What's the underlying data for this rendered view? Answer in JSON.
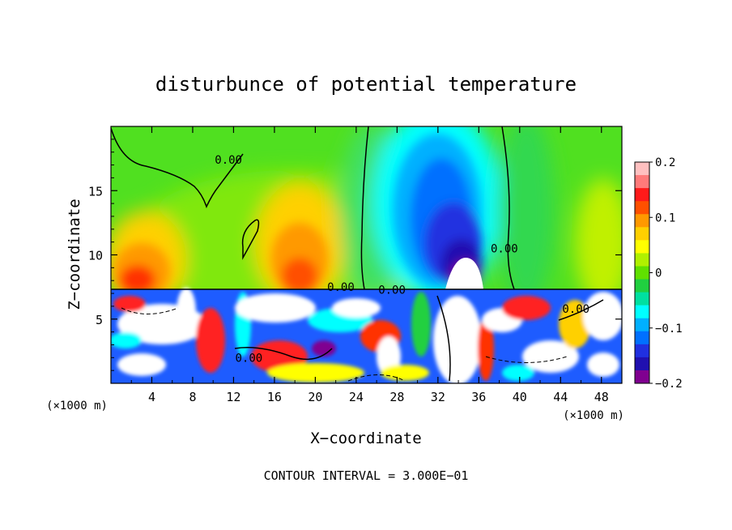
{
  "chart_data": {
    "type": "heatmap",
    "title": "disturbunce of potential temperature",
    "xlabel": "X−coordinate",
    "ylabel": "Z−coordinate",
    "x_unit_left": "(×1000 m)",
    "x_unit_right": "(×1000 m)",
    "footer": "CONTOUR INTERVAL = 3.000E−01",
    "xlim": [
      0,
      50
    ],
    "ylim": [
      0,
      20
    ],
    "x_ticks": [
      4,
      8,
      12,
      16,
      20,
      24,
      28,
      32,
      36,
      40,
      44,
      48
    ],
    "x_tick_labels": [
      "4",
      "8",
      "12",
      "16",
      "20",
      "24",
      "28",
      "32",
      "36",
      "40",
      "44",
      "48"
    ],
    "y_ticks": [
      5,
      10,
      15
    ],
    "y_tick_labels": [
      "5",
      "10",
      "15"
    ],
    "colorbar": {
      "range": [
        -0.2,
        0.2
      ],
      "tick_values": [
        0.2,
        0.1,
        0,
        -0.1,
        -0.2
      ],
      "tick_labels": [
        "0.2",
        "0.1",
        "0",
        "−0.1",
        "−0.2"
      ],
      "colors": [
        "#ffc0c0",
        "#ff7a7a",
        "#ff1a1a",
        "#ff5000",
        "#ff9900",
        "#ffd000",
        "#ffff00",
        "#b0f000",
        "#60e000",
        "#20d040",
        "#00e0a0",
        "#00ffff",
        "#00b0ff",
        "#0070ff",
        "#2030e0",
        "#2010b0",
        "#800090"
      ]
    },
    "contour_labels": [
      {
        "text": "0.00",
        "x": 11.5,
        "z": 17.4
      },
      {
        "text": "0.00",
        "x": 38.5,
        "z": 10.5
      },
      {
        "text": "0.00",
        "x": 22.5,
        "z": 7.5
      },
      {
        "text": "0.00",
        "x": 27.5,
        "z": 7.3
      },
      {
        "text": "0.00",
        "x": 45.5,
        "z": 5.8
      },
      {
        "text": "0.00",
        "x": 13.5,
        "z": 2.0
      }
    ],
    "features": [
      {
        "kind": "warm-lobe",
        "x": 2.5,
        "z": 9.0,
        "value": 0.12
      },
      {
        "kind": "warm-lobe",
        "x": 18.5,
        "z": 10.5,
        "value": 0.11
      },
      {
        "kind": "warm-lobe",
        "x": 47.5,
        "z": 11.0,
        "value": 0.05
      },
      {
        "kind": "cold-core",
        "x": 31.5,
        "z": 13.0,
        "value": -0.14
      },
      {
        "kind": "cold-core",
        "x": 33.5,
        "z": 10.0,
        "value": -0.2
      }
    ]
  }
}
